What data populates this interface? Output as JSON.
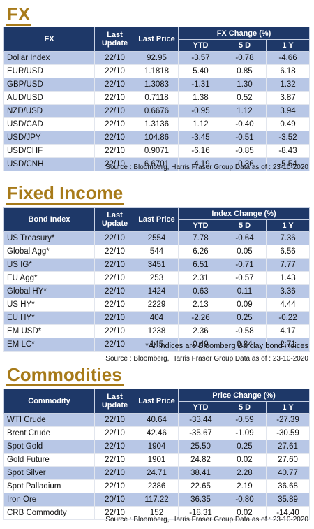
{
  "fx": {
    "title": "FX",
    "headers": {
      "name": "FX",
      "last_update": "Last Update",
      "last_price": "Last Price",
      "group": "FX Change (%)",
      "ytd": "YTD",
      "d5": "5 D",
      "y1": "1 Y"
    },
    "rows": [
      {
        "name": "Dollar Index",
        "date": "22/10",
        "price": "92.95",
        "ytd": "-3.57",
        "d5": "-0.78",
        "y1": "-4.66"
      },
      {
        "name": "EUR/USD",
        "date": "22/10",
        "price": "1.1818",
        "ytd": "5.40",
        "d5": "0.85",
        "y1": "6.18"
      },
      {
        "name": "GBP/USD",
        "date": "22/10",
        "price": "1.3083",
        "ytd": "-1.31",
        "d5": "1.30",
        "y1": "1.32"
      },
      {
        "name": "AUD/USD",
        "date": "22/10",
        "price": "0.7118",
        "ytd": "1.38",
        "d5": "0.52",
        "y1": "3.87"
      },
      {
        "name": "NZD/USD",
        "date": "22/10",
        "price": "0.6676",
        "ytd": "-0.95",
        "d5": "1.12",
        "y1": "3.94"
      },
      {
        "name": "USD/CAD",
        "date": "22/10",
        "price": "1.3136",
        "ytd": "1.12",
        "d5": "-0.40",
        "y1": "0.49"
      },
      {
        "name": "USD/JPY",
        "date": "22/10",
        "price": "104.86",
        "ytd": "-3.45",
        "d5": "-0.51",
        "y1": "-3.52"
      },
      {
        "name": "USD/CHF",
        "date": "22/10",
        "price": "0.9071",
        "ytd": "-6.16",
        "d5": "-0.85",
        "y1": "-8.43"
      },
      {
        "name": "USD/CNH",
        "date": "22/10",
        "price": "6.6701",
        "ytd": "-4.19",
        "d5": "-0.36",
        "y1": "-5.54"
      }
    ],
    "source": "Source : Bloomberg, Harris Fraser Group Data as of : 23-10-2020"
  },
  "fixed_income": {
    "title": "Fixed Income",
    "headers": {
      "name": "Bond Index",
      "last_update": "Last Update",
      "last_price": "Last Price",
      "group": "Index Change (%)",
      "ytd": "YTD",
      "d5": "5 D",
      "y1": "1 Y"
    },
    "rows": [
      {
        "name": "US Treasury*",
        "date": "22/10",
        "price": "2554",
        "ytd": "7.78",
        "d5": "-0.64",
        "y1": "7.36"
      },
      {
        "name": "Global Agg*",
        "date": "22/10",
        "price": "544",
        "ytd": "6.26",
        "d5": "0.05",
        "y1": "6.56"
      },
      {
        "name": "US IG*",
        "date": "22/10",
        "price": "3451",
        "ytd": "6.51",
        "d5": "-0.71",
        "y1": "7.77"
      },
      {
        "name": "EU Agg*",
        "date": "22/10",
        "price": "253",
        "ytd": "2.31",
        "d5": "-0.57",
        "y1": "1.43"
      },
      {
        "name": "Global HY*",
        "date": "22/10",
        "price": "1424",
        "ytd": "0.63",
        "d5": "0.11",
        "y1": "3.36"
      },
      {
        "name": "US HY*",
        "date": "22/10",
        "price": "2229",
        "ytd": "2.13",
        "d5": "0.09",
        "y1": "4.44"
      },
      {
        "name": "EU HY*",
        "date": "22/10",
        "price": "404",
        "ytd": "-2.26",
        "d5": "0.25",
        "y1": "-0.22"
      },
      {
        "name": "EM USD*",
        "date": "22/10",
        "price": "1238",
        "ytd": "2.36",
        "d5": "-0.58",
        "y1": "4.17"
      },
      {
        "name": "EM LC*",
        "date": "22/10",
        "price": "145",
        "ytd": "0.49",
        "d5": "0.84",
        "y1": "2.71"
      }
    ],
    "note": "*All indices are Bloomberg Barclay bond indices",
    "source": "Source : Bloomberg, Harris Fraser Group Data as of : 23-10-2020"
  },
  "commodities": {
    "title": "Commodities",
    "headers": {
      "name": "Commodity",
      "last_update": "Last Update",
      "last_price": "Last Price",
      "group": "Price Change (%)",
      "ytd": "YTD",
      "d5": "5 D",
      "y1": "1 Y"
    },
    "rows": [
      {
        "name": "WTI Crude",
        "date": "22/10",
        "price": "40.64",
        "ytd": "-33.44",
        "d5": "-0.59",
        "y1": "-27.39"
      },
      {
        "name": "Brent Crude",
        "date": "22/10",
        "price": "42.46",
        "ytd": "-35.67",
        "d5": "-1.09",
        "y1": "-30.59"
      },
      {
        "name": "Spot Gold",
        "date": "22/10",
        "price": "1904",
        "ytd": "25.50",
        "d5": "0.25",
        "y1": "27.61"
      },
      {
        "name": "Gold Future",
        "date": "22/10",
        "price": "1901",
        "ytd": "24.82",
        "d5": "0.02",
        "y1": "27.60"
      },
      {
        "name": "Spot Silver",
        "date": "22/10",
        "price": "24.71",
        "ytd": "38.41",
        "d5": "2.28",
        "y1": "40.77"
      },
      {
        "name": "Spot Palladium",
        "date": "22/10",
        "price": "2386",
        "ytd": "22.65",
        "d5": "2.19",
        "y1": "36.68"
      },
      {
        "name": "Iron Ore",
        "date": "20/10",
        "price": "117.22",
        "ytd": "36.35",
        "d5": "-0.80",
        "y1": "35.89"
      },
      {
        "name": "CRB Commodity",
        "date": "22/10",
        "price": "152",
        "ytd": "-18.31",
        "d5": "0.02",
        "y1": "-14.40"
      }
    ],
    "source": "Source : Bloomberg, Harris Fraser Group Data as of : 23-10-2020"
  }
}
